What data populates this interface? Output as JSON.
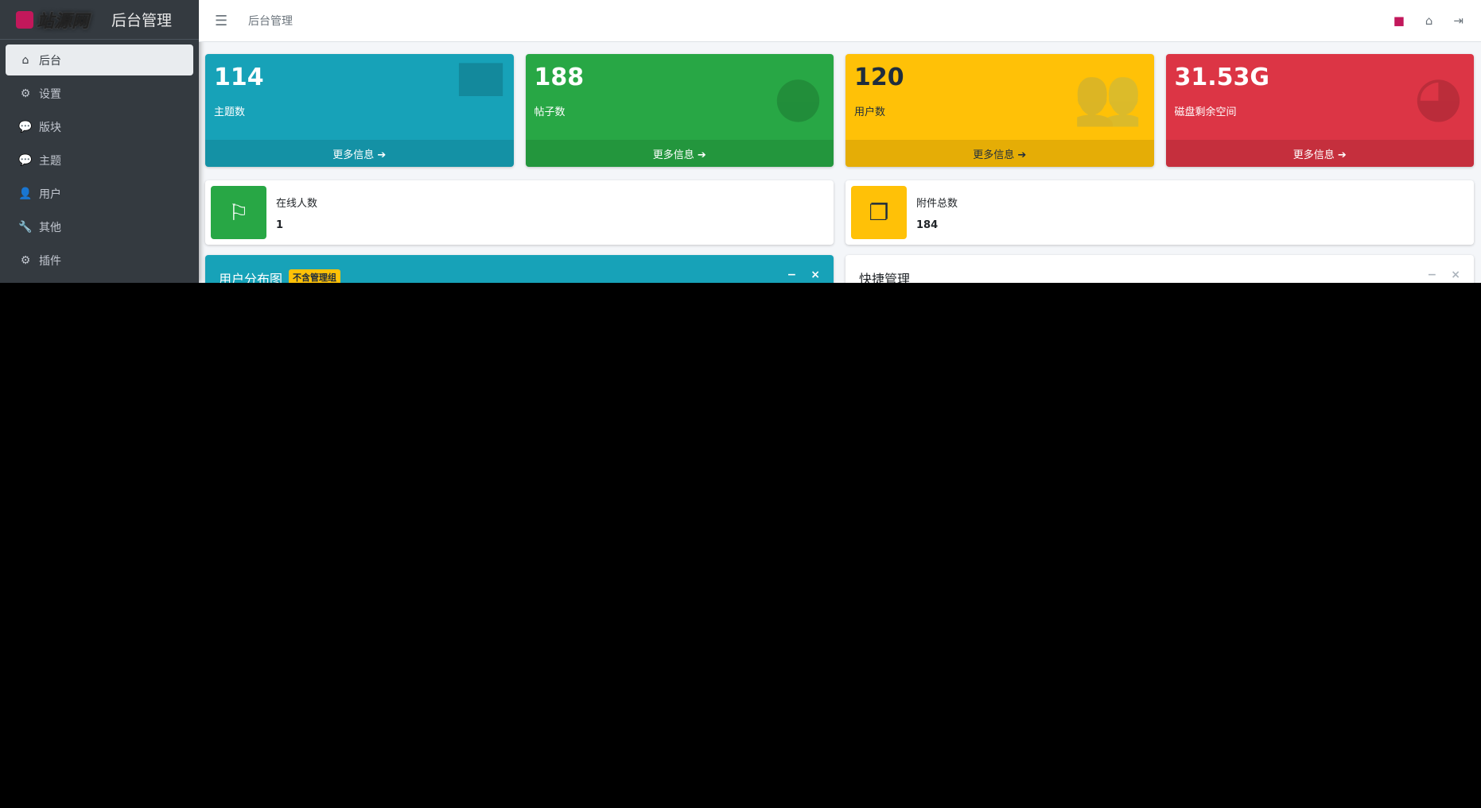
{
  "brand": {
    "logo_text": "站源网",
    "title": "后台管理"
  },
  "sidebar": {
    "items": [
      {
        "label": "后台",
        "icon": "home-icon",
        "glyph": "⌂",
        "active": true
      },
      {
        "label": "设置",
        "icon": "gear-icon",
        "glyph": "⚙"
      },
      {
        "label": "版块",
        "icon": "comment-icon",
        "glyph": "💬"
      },
      {
        "label": "主题",
        "icon": "comment-icon",
        "glyph": "💬"
      },
      {
        "label": "用户",
        "icon": "user-icon",
        "glyph": "👤"
      },
      {
        "label": "其他",
        "icon": "wrench-icon",
        "glyph": "🔧"
      },
      {
        "label": "插件",
        "icon": "cogs-icon",
        "glyph": "⚙"
      }
    ]
  },
  "header": {
    "breadcrumb": "后台管理"
  },
  "stats": [
    {
      "value": "114",
      "label": "主题数",
      "more": "更多信息 ➔",
      "color": "#17a2b8",
      "icon": "comment-icon",
      "glyph": "▀"
    },
    {
      "value": "188",
      "label": "帖子数",
      "more": "更多信息 ➔",
      "color": "#28a745",
      "icon": "comments-icon",
      "glyph": "●"
    },
    {
      "value": "120",
      "label": "用户数",
      "more": "更多信息 ➔",
      "color": "#ffc107",
      "icon": "users-icon",
      "glyph": "👥"
    },
    {
      "value": "31.53G",
      "label": "磁盘剩余空间",
      "more": "更多信息 ➔",
      "color": "#dc3545",
      "icon": "pie-chart-icon",
      "glyph": "◕"
    }
  ],
  "info": [
    {
      "label": "在线人数",
      "value": "1",
      "color": "#28a745",
      "icon": "flag-icon",
      "glyph": "⚐"
    },
    {
      "label": "附件总数",
      "value": "184",
      "color": "#ffc107",
      "icon": "copy-icon",
      "glyph": "❐"
    }
  ],
  "cards": [
    {
      "title": "用户分布图",
      "badge": "不含管理组"
    },
    {
      "title": "快捷管理"
    }
  ]
}
